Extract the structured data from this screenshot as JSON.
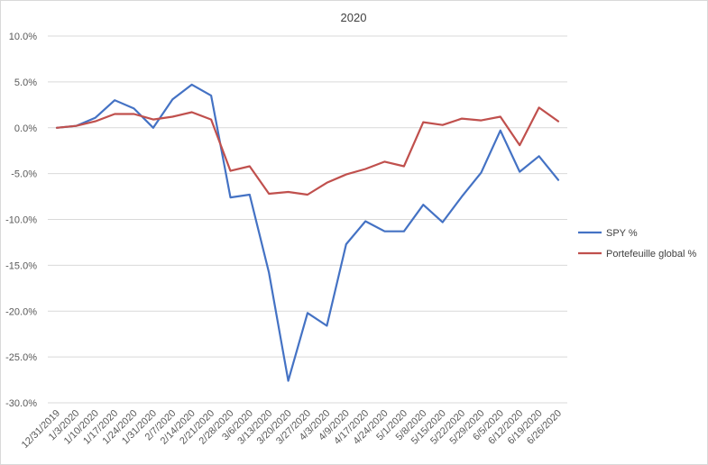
{
  "chart_data": {
    "type": "line",
    "title": "2020",
    "xlabel": "",
    "ylabel": "",
    "categories": [
      "12/31/2019",
      "1/3/2020",
      "1/10/2020",
      "1/17/2020",
      "1/24/2020",
      "1/31/2020",
      "2/7/2020",
      "2/14/2020",
      "2/21/2020",
      "2/28/2020",
      "3/6/2020",
      "3/13/2020",
      "3/20/2020",
      "3/27/2020",
      "4/3/2020",
      "4/9/2020",
      "4/17/2020",
      "4/24/2020",
      "5/1/2020",
      "5/8/2020",
      "5/15/2020",
      "5/22/2020",
      "5/29/2020",
      "6/5/2020",
      "6/12/2020",
      "6/19/2020",
      "6/26/2020"
    ],
    "ylim": [
      -30,
      10
    ],
    "yticks": [
      10,
      5,
      0,
      -5,
      -10,
      -15,
      -20,
      -25,
      -30
    ],
    "ytick_labels": [
      "10.0%",
      "5.0%",
      "0.0%",
      "-5.0%",
      "-10.0%",
      "-15.0%",
      "-20.0%",
      "-25.0%",
      "-30.0%"
    ],
    "grid": true,
    "legend_position": "right",
    "series": [
      {
        "name": "SPY %",
        "color": "#4472c4",
        "values": [
          0,
          0.2,
          1.1,
          3.0,
          2.1,
          0.0,
          3.1,
          4.7,
          3.5,
          -7.6,
          -7.3,
          -15.8,
          -27.6,
          -20.2,
          -21.6,
          -12.7,
          -10.2,
          -11.3,
          -11.3,
          -8.4,
          -10.3,
          -7.5,
          -4.9,
          -0.3,
          -4.8,
          -3.1,
          -5.7
        ]
      },
      {
        "name": "Portefeuille global %",
        "color": "#c0504d",
        "values": [
          0,
          0.2,
          0.7,
          1.5,
          1.5,
          0.9,
          1.2,
          1.7,
          0.9,
          -4.7,
          -4.2,
          -7.2,
          -7.0,
          -7.3,
          -6.0,
          -5.1,
          -4.5,
          -3.7,
          -4.2,
          0.6,
          0.3,
          1.0,
          0.8,
          1.2,
          -1.9,
          2.2,
          0.7
        ]
      }
    ]
  }
}
